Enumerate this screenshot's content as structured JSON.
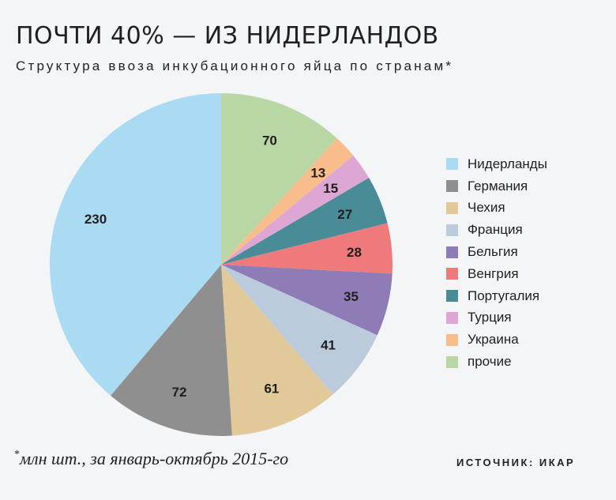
{
  "header": {
    "title": "ПОЧТИ 40% — ИЗ НИДЕРЛАНДОВ",
    "subtitle": "Структура ввоза инкубационного яйца по странам*"
  },
  "chart_data": {
    "type": "pie",
    "title": "ПОЧТИ 40% — ИЗ НИДЕРЛАНДОВ",
    "subtitle": "Структура ввоза инкубационного яйца по странам*",
    "units": "млн шт.",
    "legend_position": "right",
    "start": "12 o'clock",
    "direction": "clockwise",
    "slices": [
      {
        "label": "прочие",
        "value": 70,
        "color": "#b9d7a4"
      },
      {
        "label": "Украина",
        "value": 13,
        "color": "#f9bd8c"
      },
      {
        "label": "Турция",
        "value": 15,
        "color": "#dea7d3"
      },
      {
        "label": "Португалия",
        "value": 27,
        "color": "#498c97"
      },
      {
        "label": "Венгрия",
        "value": 28,
        "color": "#ef7a7c"
      },
      {
        "label": "Бельгия",
        "value": 35,
        "color": "#8d7cb6"
      },
      {
        "label": "Франция",
        "value": 41,
        "color": "#bccbdc"
      },
      {
        "label": "Чехия",
        "value": 61,
        "color": "#e1c999"
      },
      {
        "label": "Германия",
        "value": 72,
        "color": "#8f8f90"
      },
      {
        "label": "Нидерланды",
        "value": 230,
        "color": "#abdaf3"
      }
    ],
    "legend": [
      {
        "label": "Нидерланды",
        "color": "#abdaf3"
      },
      {
        "label": "Германия",
        "color": "#8f8f90"
      },
      {
        "label": "Чехия",
        "color": "#e1c999"
      },
      {
        "label": "Франция",
        "color": "#bccbdc"
      },
      {
        "label": "Бельгия",
        "color": "#8d7cb6"
      },
      {
        "label": "Венгрия",
        "color": "#ef7a7c"
      },
      {
        "label": "Португалия",
        "color": "#498c97"
      },
      {
        "label": "Турция",
        "color": "#dea7d3"
      },
      {
        "label": "Украина",
        "color": "#f9bd8c"
      },
      {
        "label": "прочие",
        "color": "#b9d7a4"
      }
    ]
  },
  "footer": {
    "footnote_star": "*",
    "footnote": "млн шт., за январь-октябрь 2015-го",
    "source": "ИСТОЧНИК: ИКАР"
  }
}
